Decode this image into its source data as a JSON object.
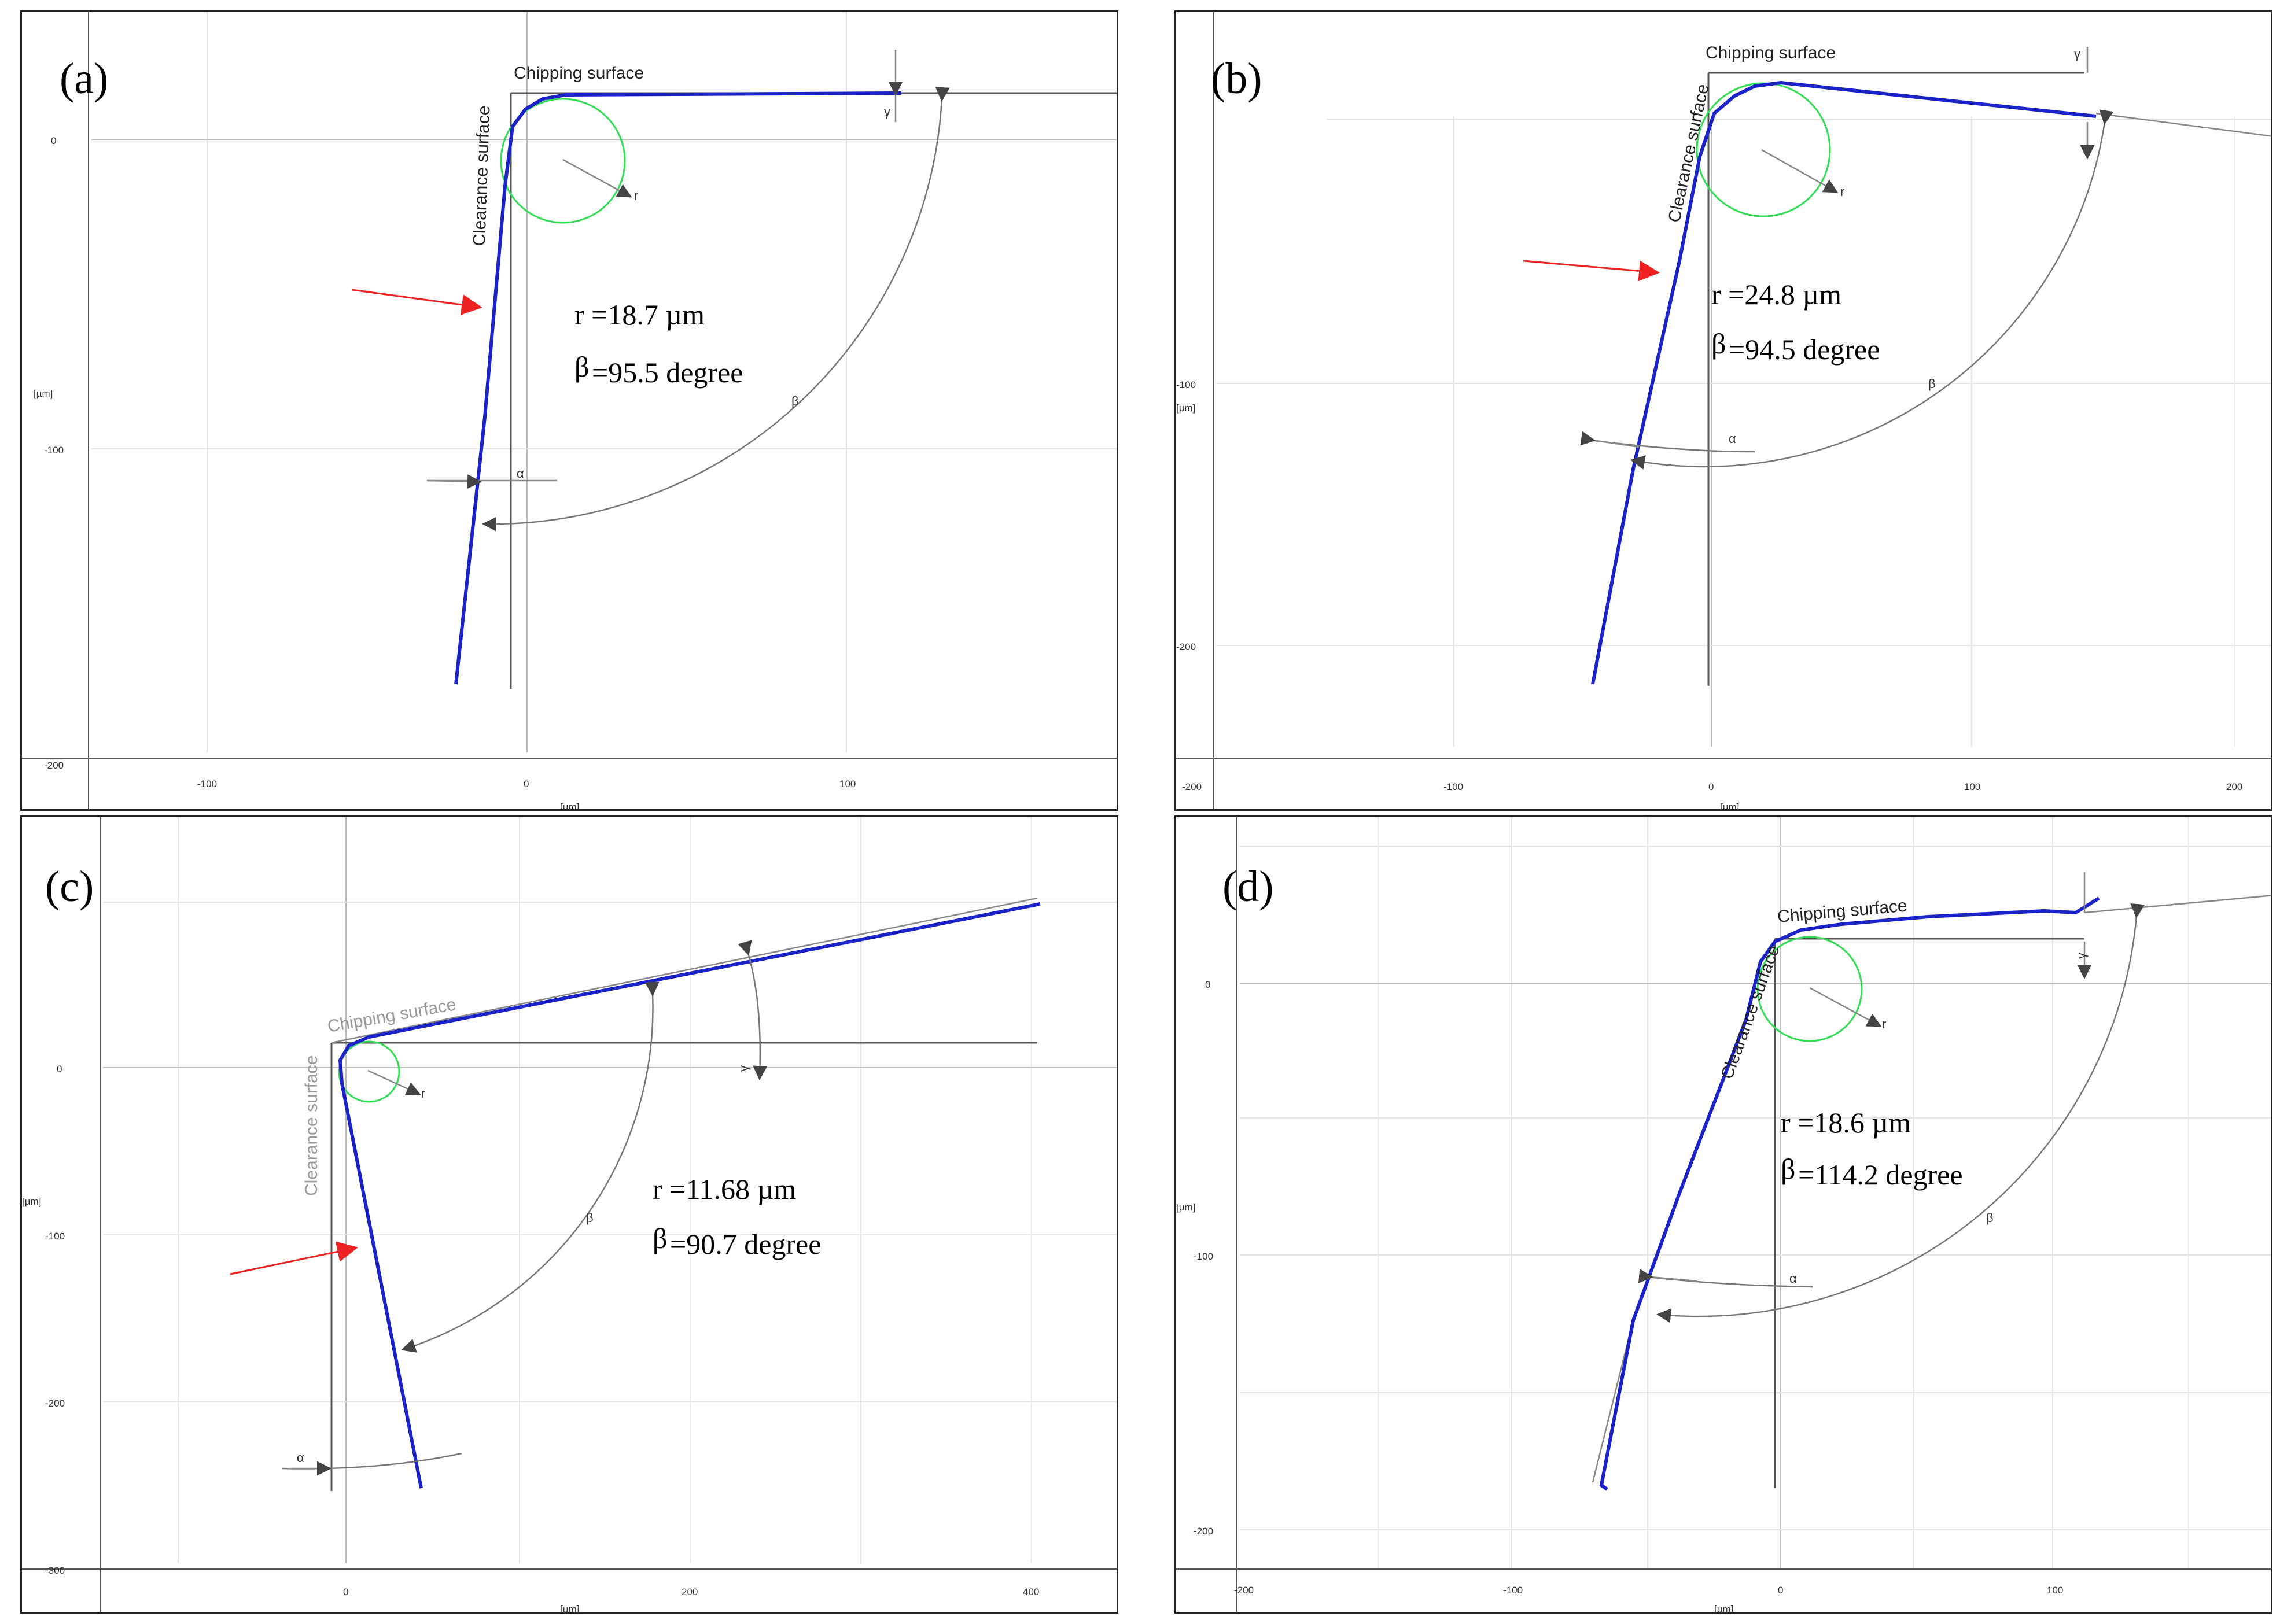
{
  "panels": [
    {
      "tag": "(a)",
      "chipping_label": "Chipping surface",
      "clearance_label": "Clearance surface",
      "r_label": "r =18.7 µm",
      "beta_symbol": "β",
      "beta_label": "=95.5 degree",
      "y_unit": "[µm]",
      "x_unit": "[µm]",
      "y_ticks": [
        "0",
        "-100",
        "-200"
      ],
      "x_ticks": [
        "-100",
        "0",
        "100"
      ],
      "symbols": {
        "gamma": "γ",
        "alpha": "α",
        "beta": "β",
        "r": "r"
      }
    },
    {
      "tag": "(b)",
      "chipping_label": "Chipping surface",
      "clearance_label": "Clearance surface",
      "r_label": "r =24.8 µm",
      "beta_symbol": "β",
      "beta_label": "=94.5 degree",
      "y_unit": "[µm]",
      "x_unit": "[µm]",
      "y_ticks": [
        "-100",
        "-200"
      ],
      "x_ticks": [
        "-200",
        "-100",
        "0",
        "100",
        "200"
      ],
      "symbols": {
        "gamma": "γ",
        "alpha": "α",
        "beta": "β",
        "r": "r"
      }
    },
    {
      "tag": "(c)",
      "chipping_label": "Chipping surface",
      "clearance_label": "Clearance surface",
      "r_label": "r =11.68 µm",
      "beta_symbol": "β",
      "beta_label": "=90.7 degree",
      "y_unit": "[µm]",
      "x_unit": "[µm]",
      "y_ticks": [
        "0",
        "-100",
        "-200",
        "-300"
      ],
      "x_ticks": [
        "0",
        "200",
        "400"
      ],
      "symbols": {
        "gamma": "γ",
        "alpha": "α",
        "beta": "β",
        "r": "r"
      }
    },
    {
      "tag": "(d)",
      "chipping_label": "Chipping surface",
      "clearance_label": "Clearance surface",
      "r_label": "r =18.6 µm",
      "beta_symbol": "β",
      "beta_label": "=114.2 degree",
      "y_unit": "[µm]",
      "x_unit": "[µm]",
      "y_ticks": [
        "0",
        "-100",
        "-200"
      ],
      "x_ticks": [
        "-200",
        "-100",
        "0",
        "100"
      ],
      "symbols": {
        "gamma": "γ",
        "alpha": "α",
        "beta": "β",
        "r": "r"
      }
    }
  ],
  "colors": {
    "profile": "#1a22c8",
    "fit_circle": "#33dd55",
    "indicator_arrow": "#ee2222"
  }
}
